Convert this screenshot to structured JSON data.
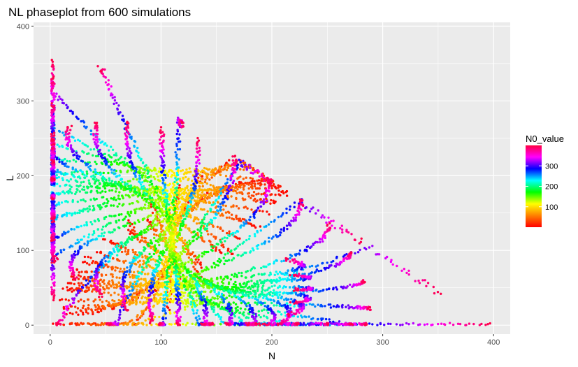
{
  "chart_data": {
    "type": "scatter",
    "title": "NL phaseplot from 600 simulations",
    "xlabel": "N",
    "ylabel": "L",
    "xlim": [
      -15,
      415
    ],
    "ylim": [
      -12,
      405
    ],
    "x_ticks": [
      0,
      100,
      200,
      300,
      400
    ],
    "y_ticks": [
      0,
      100,
      200,
      300,
      400
    ],
    "grid": true,
    "panel_background": "#ebebeb",
    "grid_color": "#ffffff",
    "color_variable": "N0_value",
    "color_scale": {
      "name": "N0_value",
      "colors": [
        "#ff0000",
        "#ff8000",
        "#ffff00",
        "#00ff00",
        "#00ffff",
        "#0000ff",
        "#ff00ff",
        "#ff0040"
      ],
      "range": [
        0,
        400
      ],
      "breaks": [
        100,
        200,
        300
      ],
      "break_labels": [
        "100",
        "200",
        "300"
      ]
    },
    "legend_position": "right",
    "n_simulations": 600,
    "dynamics": {
      "equilibrium_N": 110,
      "equilibrium_L": 112,
      "description": "Trajectories spiral counterclockwise from (N0, 0) toward the equilibrium"
    }
  }
}
